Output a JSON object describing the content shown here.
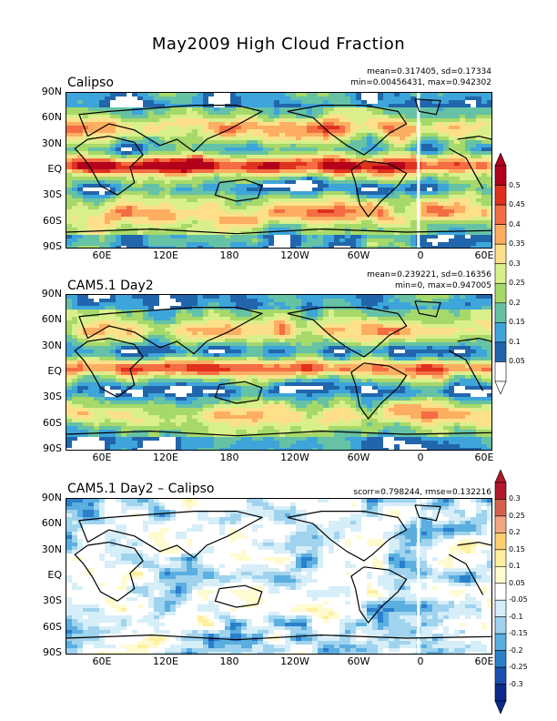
{
  "figure_title": "May2009 High Cloud Fraction",
  "x_ticks": [
    "60E",
    "120E",
    "180",
    "120W",
    "60W",
    "0",
    "60E"
  ],
  "y_ticks": [
    "90N",
    "60N",
    "30N",
    "EQ",
    "30S",
    "60S",
    "90S"
  ],
  "panels": [
    {
      "title": "Calipso",
      "stats_line1": "mean=0.317405, sd=0.17334",
      "stats_line2": "min=0.00456431, max=0.942302"
    },
    {
      "title": "CAM5.1 Day2",
      "stats_line1": "mean=0.239221, sd=0.16356",
      "stats_line2": "min=0, max=0.947005"
    },
    {
      "title": "CAM5.1 Day2 – Calipso",
      "stats_line1": "scorr=0.798244, rmse=0.132216",
      "stats_line2": ""
    }
  ],
  "colorbar_fraction": {
    "labels": [
      "0.5",
      "0.45",
      "0.4",
      "0.35",
      "0.3",
      "0.25",
      "0.2",
      "0.15",
      "0.1",
      "0.05"
    ],
    "colors": [
      "#b3001b",
      "#e0301e",
      "#f46d43",
      "#fdae61",
      "#fee08b",
      "#d9ef8b",
      "#a6d96a",
      "#66c2a5",
      "#3da5d9",
      "#2166ac",
      "#ffffff"
    ]
  },
  "colorbar_diff": {
    "labels": [
      "0.3",
      "0.25",
      "0.2",
      "0.15",
      "0.1",
      "0.05",
      "-0.05",
      "-0.1",
      "-0.15",
      "-0.2",
      "-0.25",
      "-0.3"
    ],
    "colors": [
      "#b2182b",
      "#d6604d",
      "#f4a582",
      "#fdcf6f",
      "#ffef9f",
      "#fffbd0",
      "#ffffff",
      "#d6eef8",
      "#9fd3ee",
      "#5aaee0",
      "#2b7fcb",
      "#1c4fb0",
      "#0b2a8a"
    ]
  }
}
